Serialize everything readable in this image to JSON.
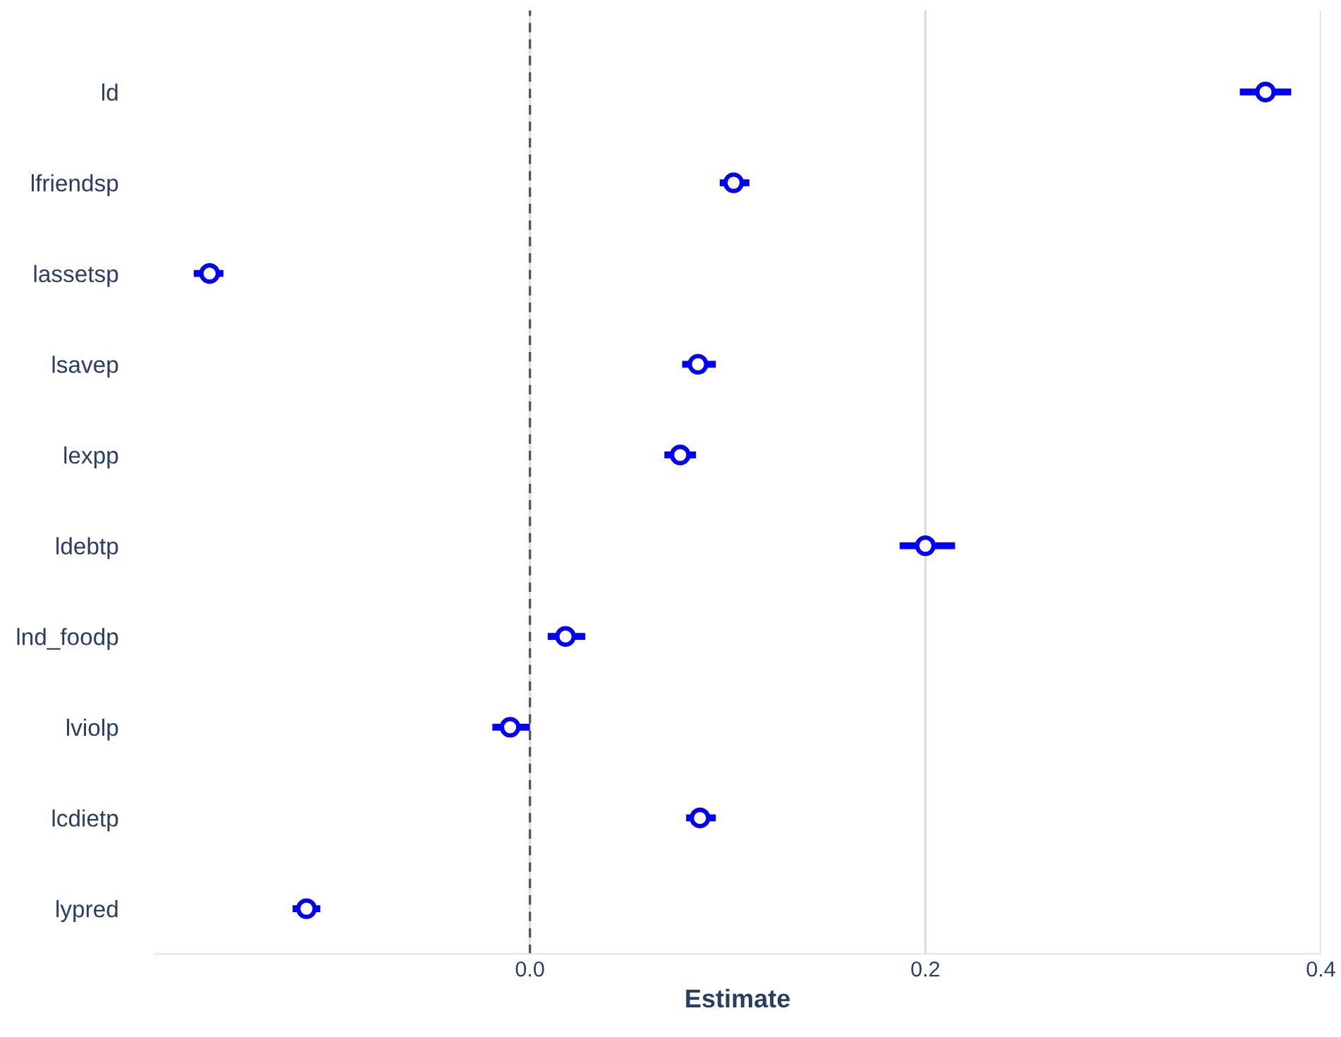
{
  "chart_data": {
    "type": "scatter",
    "orientation": "horizontal",
    "xlabel": "Estimate",
    "categories": [
      "ld",
      "lfriendsp",
      "lassetsp",
      "lsavep",
      "lexpp",
      "ldebtp",
      "lnd_foodp",
      "lviolp",
      "lcdietp",
      "lypred"
    ],
    "series": [
      {
        "color": "#0000ff",
        "values": [
          0.372,
          0.103,
          -0.162,
          0.085,
          0.076,
          0.2,
          0.018,
          -0.01,
          0.086,
          -0.113
        ],
        "errors": [
          [
            0.359,
            0.385
          ],
          [
            0.096,
            0.111
          ],
          [
            -0.17,
            -0.155
          ],
          [
            0.077,
            0.094
          ],
          [
            0.068,
            0.084
          ],
          [
            0.187,
            0.215
          ],
          [
            0.009,
            0.028
          ],
          [
            -0.019,
            0.0
          ],
          [
            0.079,
            0.094
          ],
          [
            -0.12,
            -0.106
          ]
        ]
      }
    ],
    "xlim": [
      -0.19,
      0.4
    ],
    "xticks": [
      {
        "value": 0,
        "label": "0.0"
      },
      0.2,
      0.4
    ],
    "marker": "circle",
    "grid": "x",
    "ref_lines": [
      {
        "axis": "x",
        "value": 0,
        "color": "#555555",
        "line_style": "dashed"
      }
    ]
  }
}
